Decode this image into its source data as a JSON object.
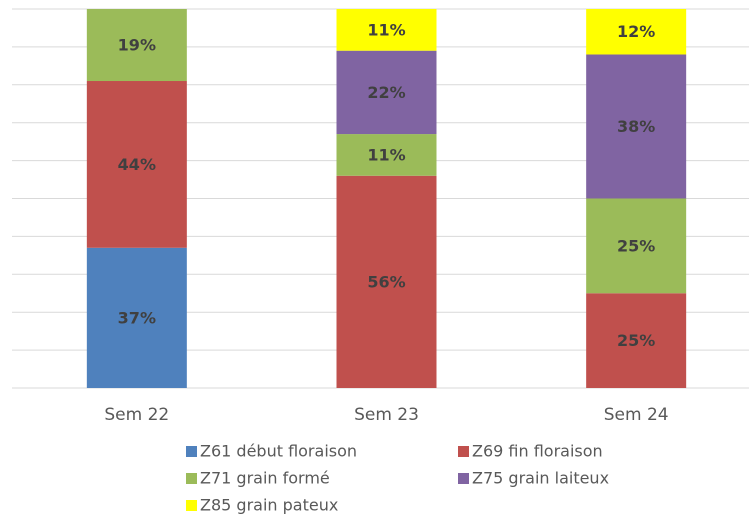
{
  "chart_data": {
    "type": "stacked_bar",
    "categories": [
      "Sem 22",
      "Sem 23",
      "Sem 24"
    ],
    "series": [
      {
        "name": "Z61 début floraison",
        "color": "#4f81bd",
        "values": [
          37,
          null,
          null
        ],
        "value_labels": [
          "37%",
          null,
          null
        ]
      },
      {
        "name": "Z69 fin floraison",
        "color": "#c0504d",
        "values": [
          44,
          56,
          25
        ],
        "value_labels": [
          "44%",
          "56%",
          "25%"
        ]
      },
      {
        "name": "Z71 grain formé",
        "color": "#9bbb59",
        "values": [
          19,
          11,
          25
        ],
        "value_labels": [
          "19%",
          "11%",
          "25%"
        ]
      },
      {
        "name": "Z75 grain laiteux",
        "color": "#8064a2",
        "values": [
          null,
          22,
          38
        ],
        "value_labels": [
          null,
          "22%",
          "38%"
        ]
      },
      {
        "name": "Z85 grain pateux",
        "color": "#ffff00",
        "values": [
          null,
          11,
          12
        ],
        "value_labels": [
          null,
          "11%",
          "12%"
        ]
      }
    ],
    "ylim": [
      0,
      100
    ],
    "yticks": [
      0,
      10,
      20,
      30,
      40,
      50,
      60,
      70,
      80,
      90,
      100
    ],
    "grid": true,
    "legend": "bottom"
  }
}
